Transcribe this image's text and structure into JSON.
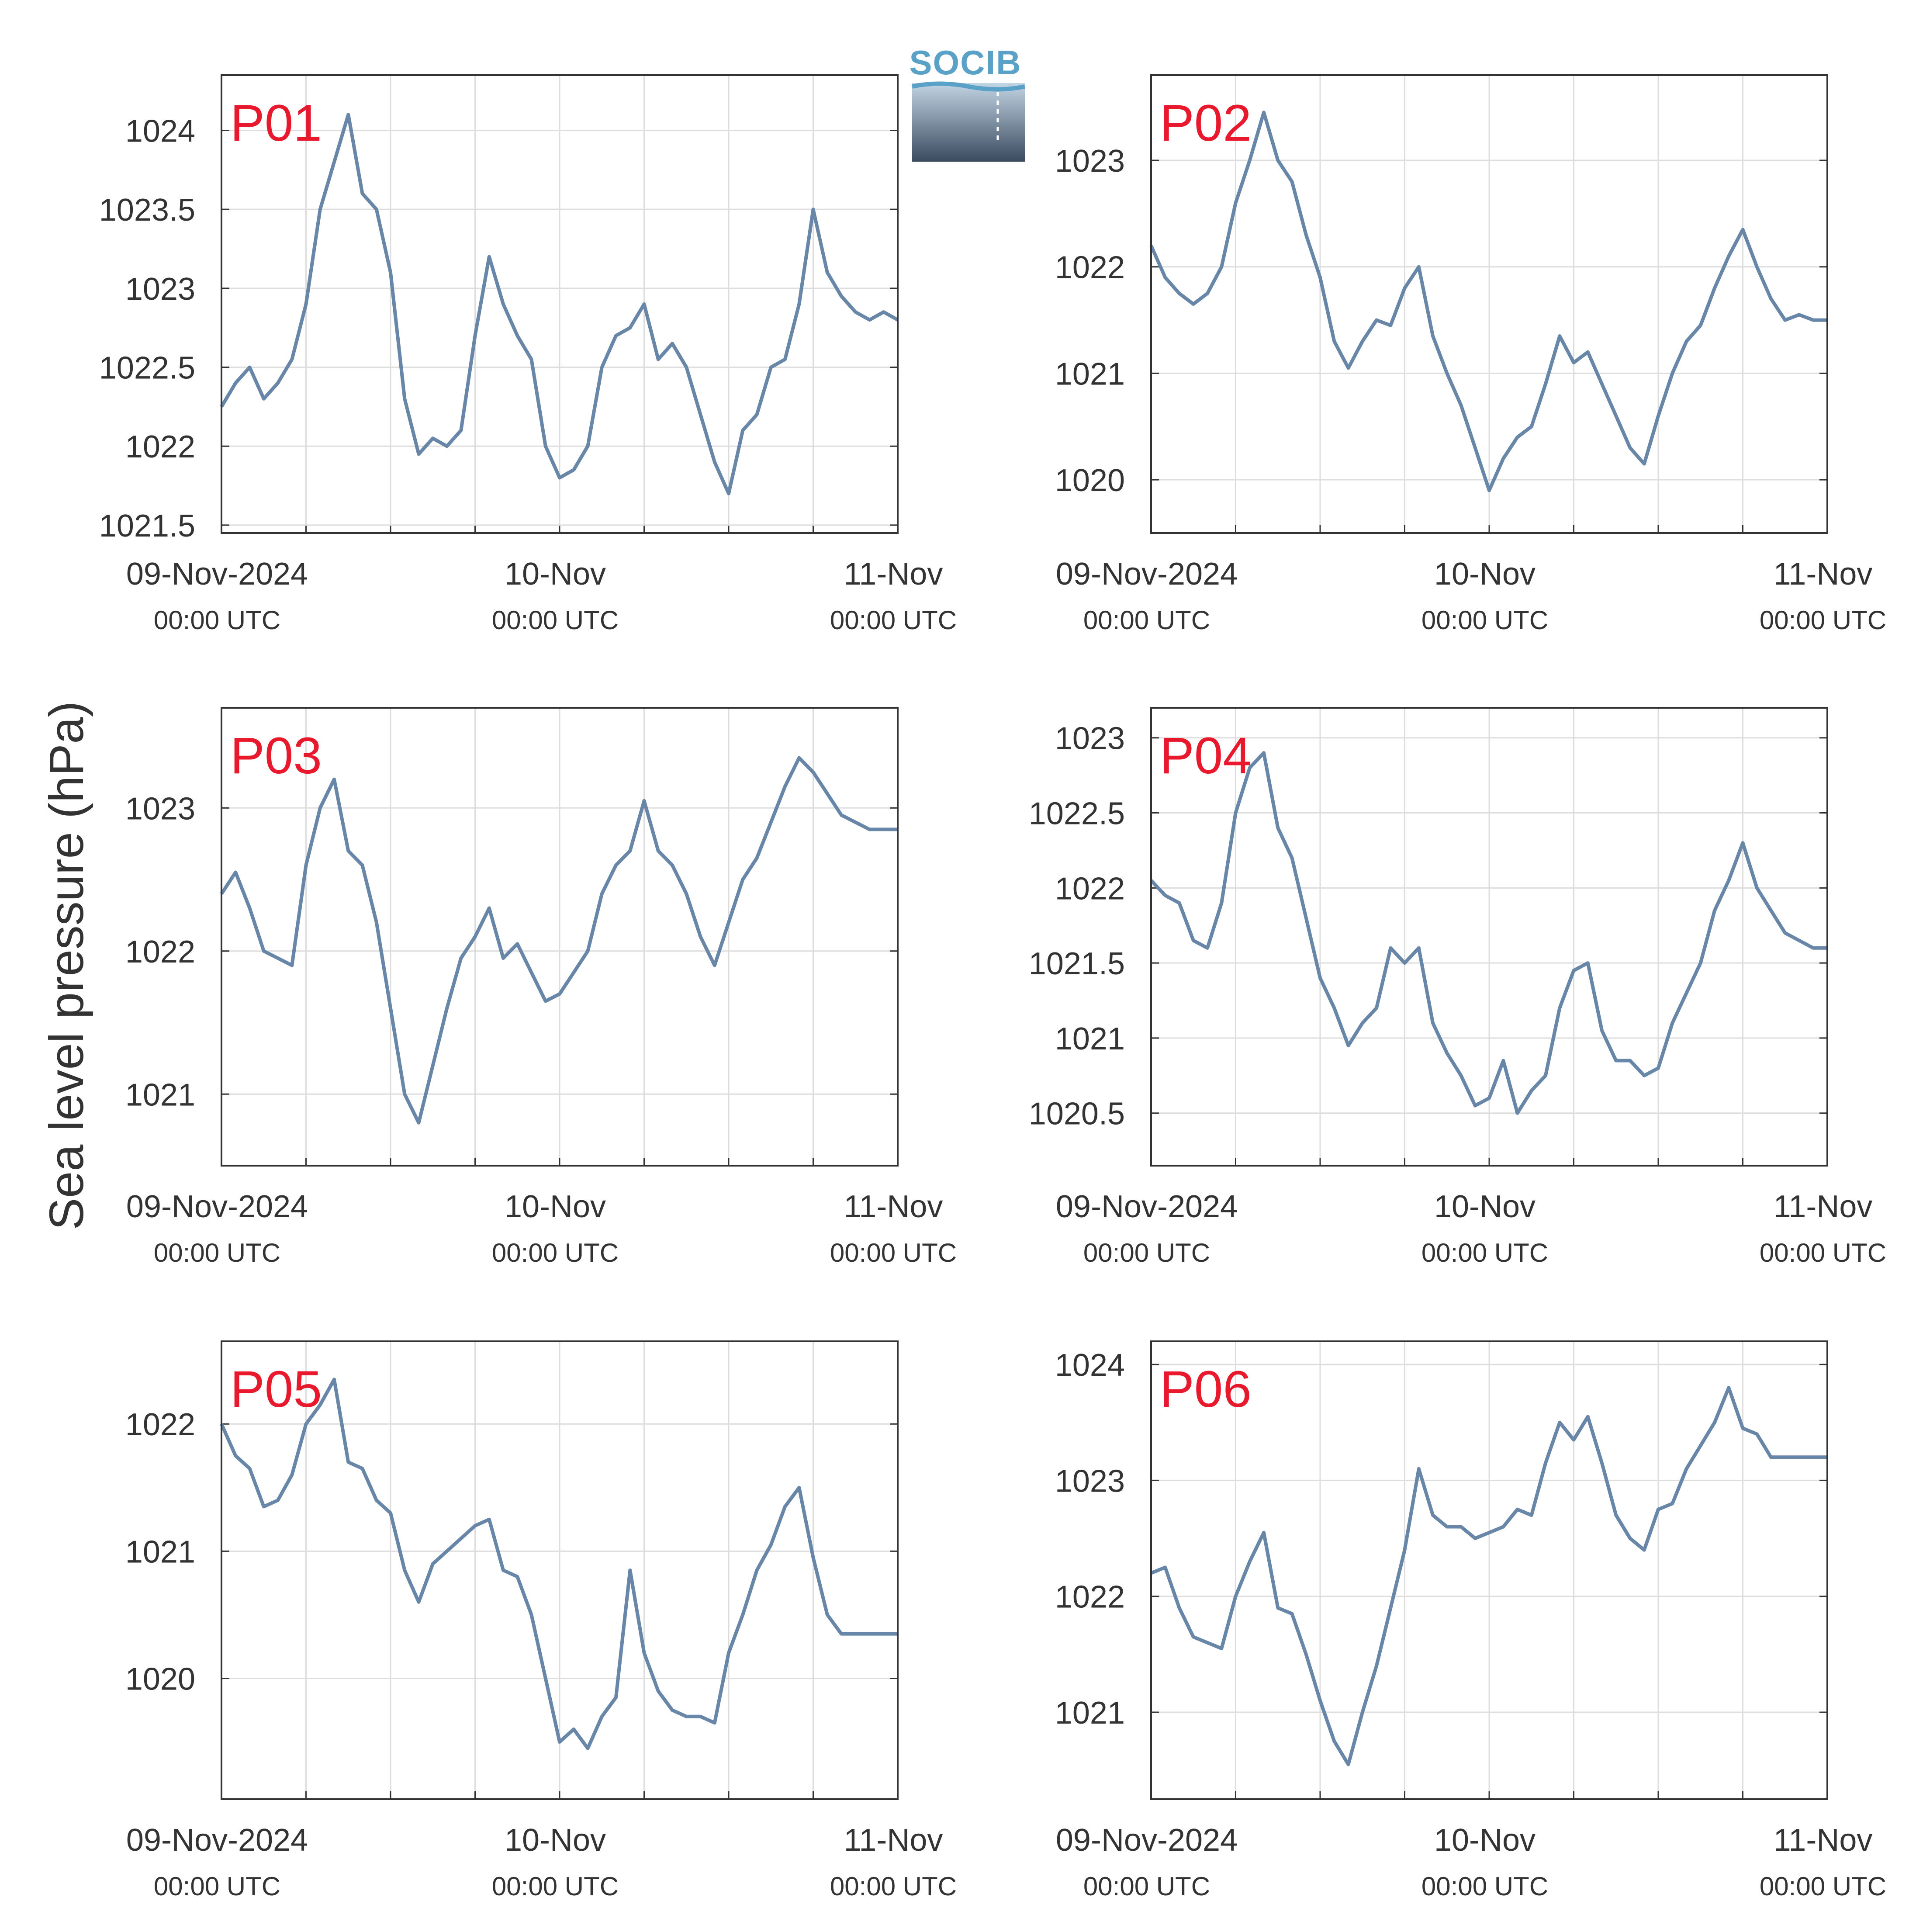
{
  "ylabel": "Sea level pressure (hPa)",
  "logo": {
    "text": "SOCIB"
  },
  "colors": {
    "line": "#6886a8",
    "panel_label": "#e8192c",
    "axis": "#333333",
    "grid": "#dddddd"
  },
  "chart_data": [
    {
      "type": "line",
      "label": "P01",
      "x_ticks": [
        "09-Nov-2024",
        "10-Nov",
        "11-Nov"
      ],
      "x_ticks_sub": [
        "00:00 UTC",
        "00:00 UTC",
        "00:00 UTC"
      ],
      "x_hours": [
        0,
        24,
        48
      ],
      "xlim_hours": [
        0,
        48
      ],
      "ylim": [
        1021.45,
        1024.35
      ],
      "y_ticks": [
        "1021.5",
        "1022",
        "1022.5",
        "1023",
        "1023.5",
        "1024"
      ],
      "y_tick_values": [
        1021.5,
        1022,
        1022.5,
        1023,
        1023.5,
        1024
      ],
      "grid": true,
      "series": [
        {
          "x_hours": [
            0,
            1,
            2,
            3,
            4,
            5,
            6,
            7,
            8,
            9,
            10,
            11,
            12,
            13,
            14,
            15,
            16,
            17,
            18,
            19,
            20,
            21,
            22,
            23,
            24,
            25,
            26,
            27,
            28,
            29,
            30,
            31,
            32,
            33,
            34,
            35,
            36,
            37,
            38,
            39,
            40,
            41,
            42,
            43,
            44,
            45,
            46,
            47,
            48
          ],
          "values": [
            1022.25,
            1022.4,
            1022.5,
            1022.3,
            1022.4,
            1022.55,
            1022.9,
            1023.5,
            1023.8,
            1024.1,
            1023.6,
            1023.5,
            1023.1,
            1022.3,
            1021.95,
            1022.05,
            1022.0,
            1022.1,
            1022.7,
            1023.2,
            1022.9,
            1022.7,
            1022.55,
            1022.0,
            1021.8,
            1021.85,
            1022.0,
            1022.5,
            1022.7,
            1022.75,
            1022.9,
            1022.55,
            1022.65,
            1022.5,
            1022.2,
            1021.9,
            1021.7,
            1022.1,
            1022.2,
            1022.5,
            1022.55,
            1022.9,
            1023.5,
            1023.1,
            1022.95,
            1022.85,
            1022.8,
            1022.85,
            1022.8
          ]
        }
      ]
    },
    {
      "type": "line",
      "label": "P02",
      "x_ticks": [
        "09-Nov-2024",
        "10-Nov",
        "11-Nov"
      ],
      "x_ticks_sub": [
        "00:00 UTC",
        "00:00 UTC",
        "00:00 UTC"
      ],
      "x_hours": [
        0,
        24,
        48
      ],
      "xlim_hours": [
        0,
        48
      ],
      "ylim": [
        1019.5,
        1023.8
      ],
      "y_ticks": [
        "1020",
        "1021",
        "1022",
        "1023"
      ],
      "y_tick_values": [
        1020,
        1021,
        1022,
        1023
      ],
      "grid": true,
      "series": [
        {
          "x_hours": [
            0,
            1,
            2,
            3,
            4,
            5,
            6,
            7,
            8,
            9,
            10,
            11,
            12,
            13,
            14,
            15,
            16,
            17,
            18,
            19,
            20,
            21,
            22,
            23,
            24,
            25,
            26,
            27,
            28,
            29,
            30,
            31,
            32,
            33,
            34,
            35,
            36,
            37,
            38,
            39,
            40,
            41,
            42,
            43,
            44,
            45,
            46,
            47,
            48
          ],
          "values": [
            1022.2,
            1021.9,
            1021.75,
            1021.65,
            1021.75,
            1022.0,
            1022.6,
            1023.0,
            1023.45,
            1023.0,
            1022.8,
            1022.3,
            1021.9,
            1021.3,
            1021.05,
            1021.3,
            1021.5,
            1021.45,
            1021.8,
            1022.0,
            1021.35,
            1021.0,
            1020.7,
            1020.3,
            1019.9,
            1020.2,
            1020.4,
            1020.5,
            1020.9,
            1021.35,
            1021.1,
            1021.2,
            1020.9,
            1020.6,
            1020.3,
            1020.15,
            1020.6,
            1021.0,
            1021.3,
            1021.45,
            1021.8,
            1022.1,
            1022.35,
            1022.0,
            1021.7,
            1021.5,
            1021.55,
            1021.5,
            1021.5
          ]
        }
      ]
    },
    {
      "type": "line",
      "label": "P03",
      "x_ticks": [
        "09-Nov-2024",
        "10-Nov",
        "11-Nov"
      ],
      "x_ticks_sub": [
        "00:00 UTC",
        "00:00 UTC",
        "00:00 UTC"
      ],
      "x_hours": [
        0,
        24,
        48
      ],
      "xlim_hours": [
        0,
        48
      ],
      "ylim": [
        1020.5,
        1023.7
      ],
      "y_ticks": [
        "1021",
        "1022",
        "1023"
      ],
      "y_tick_values": [
        1021,
        1022,
        1023
      ],
      "grid": true,
      "series": [
        {
          "x_hours": [
            0,
            1,
            2,
            3,
            4,
            5,
            6,
            7,
            8,
            9,
            10,
            11,
            12,
            13,
            14,
            15,
            16,
            17,
            18,
            19,
            20,
            21,
            22,
            23,
            24,
            25,
            26,
            27,
            28,
            29,
            30,
            31,
            32,
            33,
            34,
            35,
            36,
            37,
            38,
            39,
            40,
            41,
            42,
            43,
            44,
            45,
            46,
            47,
            48
          ],
          "values": [
            1022.4,
            1022.55,
            1022.3,
            1022.0,
            1021.95,
            1021.9,
            1022.6,
            1023.0,
            1023.2,
            1022.7,
            1022.6,
            1022.2,
            1021.6,
            1021.0,
            1020.8,
            1021.2,
            1021.6,
            1021.95,
            1022.1,
            1022.3,
            1021.95,
            1022.05,
            1021.85,
            1021.65,
            1021.7,
            1021.85,
            1022.0,
            1022.4,
            1022.6,
            1022.7,
            1023.05,
            1022.7,
            1022.6,
            1022.4,
            1022.1,
            1021.9,
            1022.2,
            1022.5,
            1022.65,
            1022.9,
            1023.15,
            1023.35,
            1023.25,
            1023.1,
            1022.95,
            1022.9,
            1022.85,
            1022.85,
            1022.85
          ]
        }
      ]
    },
    {
      "type": "line",
      "label": "P04",
      "x_ticks": [
        "09-Nov-2024",
        "10-Nov",
        "11-Nov"
      ],
      "x_ticks_sub": [
        "00:00 UTC",
        "00:00 UTC",
        "00:00 UTC"
      ],
      "x_hours": [
        0,
        24,
        48
      ],
      "xlim_hours": [
        0,
        48
      ],
      "ylim": [
        1020.15,
        1023.2
      ],
      "y_ticks": [
        "1020.5",
        "1021",
        "1021.5",
        "1022",
        "1022.5",
        "1023"
      ],
      "y_tick_values": [
        1020.5,
        1021,
        1021.5,
        1022,
        1022.5,
        1023
      ],
      "grid": true,
      "series": [
        {
          "x_hours": [
            0,
            1,
            2,
            3,
            4,
            5,
            6,
            7,
            8,
            9,
            10,
            11,
            12,
            13,
            14,
            15,
            16,
            17,
            18,
            19,
            20,
            21,
            22,
            23,
            24,
            25,
            26,
            27,
            28,
            29,
            30,
            31,
            32,
            33,
            34,
            35,
            36,
            37,
            38,
            39,
            40,
            41,
            42,
            43,
            44,
            45,
            46,
            47,
            48
          ],
          "values": [
            1022.05,
            1021.95,
            1021.9,
            1021.65,
            1021.6,
            1021.9,
            1022.5,
            1022.8,
            1022.9,
            1022.4,
            1022.2,
            1021.8,
            1021.4,
            1021.2,
            1020.95,
            1021.1,
            1021.2,
            1021.6,
            1021.5,
            1021.6,
            1021.1,
            1020.9,
            1020.75,
            1020.55,
            1020.6,
            1020.85,
            1020.5,
            1020.65,
            1020.75,
            1021.2,
            1021.45,
            1021.5,
            1021.05,
            1020.85,
            1020.85,
            1020.75,
            1020.8,
            1021.1,
            1021.3,
            1021.5,
            1021.85,
            1022.05,
            1022.3,
            1022.0,
            1021.85,
            1021.7,
            1021.65,
            1021.6,
            1021.6
          ]
        }
      ]
    },
    {
      "type": "line",
      "label": "P05",
      "x_ticks": [
        "09-Nov-2024",
        "10-Nov",
        "11-Nov"
      ],
      "x_ticks_sub": [
        "00:00 UTC",
        "00:00 UTC",
        "00:00 UTC"
      ],
      "x_hours": [
        0,
        24,
        48
      ],
      "xlim_hours": [
        0,
        48
      ],
      "ylim": [
        1019.05,
        1022.65
      ],
      "y_ticks": [
        "1020",
        "1021",
        "1022"
      ],
      "y_tick_values": [
        1020,
        1021,
        1022
      ],
      "grid": true,
      "series": [
        {
          "x_hours": [
            0,
            1,
            2,
            3,
            4,
            5,
            6,
            7,
            8,
            9,
            10,
            11,
            12,
            13,
            14,
            15,
            16,
            17,
            18,
            19,
            20,
            21,
            22,
            23,
            24,
            25,
            26,
            27,
            28,
            29,
            30,
            31,
            32,
            33,
            34,
            35,
            36,
            37,
            38,
            39,
            40,
            41,
            42,
            43,
            44,
            45,
            46,
            47,
            48
          ],
          "values": [
            1022.0,
            1021.75,
            1021.65,
            1021.35,
            1021.4,
            1021.6,
            1022.0,
            1022.15,
            1022.35,
            1021.7,
            1021.65,
            1021.4,
            1021.3,
            1020.85,
            1020.6,
            1020.9,
            1021.0,
            1021.1,
            1021.2,
            1021.25,
            1020.85,
            1020.8,
            1020.5,
            1020.0,
            1019.5,
            1019.6,
            1019.45,
            1019.7,
            1019.85,
            1020.85,
            1020.2,
            1019.9,
            1019.75,
            1019.7,
            1019.7,
            1019.65,
            1020.2,
            1020.5,
            1020.85,
            1021.05,
            1021.35,
            1021.5,
            1020.95,
            1020.5,
            1020.35,
            1020.35,
            1020.35,
            1020.35,
            1020.35
          ]
        }
      ]
    },
    {
      "type": "line",
      "label": "P06",
      "x_ticks": [
        "09-Nov-2024",
        "10-Nov",
        "11-Nov"
      ],
      "x_ticks_sub": [
        "00:00 UTC",
        "00:00 UTC",
        "00:00 UTC"
      ],
      "x_hours": [
        0,
        24,
        48
      ],
      "xlim_hours": [
        0,
        48
      ],
      "ylim": [
        1020.25,
        1024.2
      ],
      "y_ticks": [
        "1021",
        "1022",
        "1023",
        "1024"
      ],
      "y_tick_values": [
        1021,
        1022,
        1023,
        1024
      ],
      "grid": true,
      "series": [
        {
          "x_hours": [
            0,
            1,
            2,
            3,
            4,
            5,
            6,
            7,
            8,
            9,
            10,
            11,
            12,
            13,
            14,
            15,
            16,
            17,
            18,
            19,
            20,
            21,
            22,
            23,
            24,
            25,
            26,
            27,
            28,
            29,
            30,
            31,
            32,
            33,
            34,
            35,
            36,
            37,
            38,
            39,
            40,
            41,
            42,
            43,
            44,
            45,
            46,
            47,
            48
          ],
          "values": [
            1022.2,
            1022.25,
            1021.9,
            1021.65,
            1021.6,
            1021.55,
            1022.0,
            1022.3,
            1022.55,
            1021.9,
            1021.85,
            1021.5,
            1021.1,
            1020.75,
            1020.55,
            1021.0,
            1021.4,
            1021.9,
            1022.4,
            1023.1,
            1022.7,
            1022.6,
            1022.6,
            1022.5,
            1022.55,
            1022.6,
            1022.75,
            1022.7,
            1023.15,
            1023.5,
            1023.35,
            1023.55,
            1023.15,
            1022.7,
            1022.5,
            1022.4,
            1022.75,
            1022.8,
            1023.1,
            1023.3,
            1023.5,
            1023.8,
            1023.45,
            1023.4,
            1023.2,
            1023.2,
            1023.2,
            1023.2,
            1023.2
          ]
        }
      ]
    }
  ]
}
